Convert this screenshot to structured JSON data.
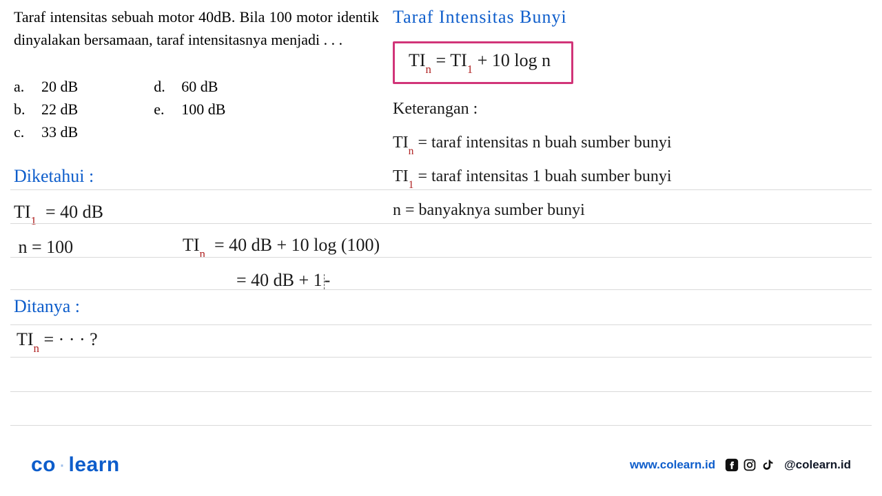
{
  "colors": {
    "blue": "#0d5dcb",
    "red_sub": "#b02424",
    "pink_border": "#d13478",
    "text": "#1a1a1a",
    "rule": "#d9d9d9"
  },
  "question": {
    "text": "Taraf intensitas sebuah motor 40dB. Bila 100 motor identik dinyalakan bersamaan, taraf intensitasnya menjadi . . .",
    "options_left": [
      {
        "letter": "a.",
        "text": "20 dB"
      },
      {
        "letter": "b.",
        "text": "22 dB"
      },
      {
        "letter": "c.",
        "text": "33 dB"
      }
    ],
    "options_right": [
      {
        "letter": "d.",
        "text": "60 dB"
      },
      {
        "letter": "e.",
        "text": "100 dB"
      }
    ]
  },
  "heading_right": "Taraf  Intensitas  Bunyi",
  "formula": {
    "lhs_main": "TI",
    "lhs_sub": "n",
    "rhs_main": "TI",
    "rhs_sub": "1",
    "tail": " + 10 log n"
  },
  "keterangan": {
    "title": "Keterangan :",
    "lines": [
      {
        "sym_main": "TI",
        "sym_sub": "n",
        "eq": "= taraf intensitas n buah sumber bunyi"
      },
      {
        "sym_main": "TI",
        "sym_sub": "1",
        "eq": "= taraf intensitas 1 buah sumber bunyi"
      },
      {
        "sym_main": "n",
        "sym_sub": "",
        "eq": "= banyaknya sumber bunyi"
      }
    ]
  },
  "diketahui": {
    "title": "Diketahui :",
    "lines": [
      {
        "sym_main": "TI",
        "sym_sub": "1",
        "eq": "= 40 dB"
      },
      {
        "sym_main": "n",
        "sym_sub": "",
        "eq": "=  100"
      }
    ]
  },
  "calc": {
    "line1": {
      "lhs_main": "TI",
      "lhs_sub": "n",
      "rhs": "=  40 dB  +  10  log (100)"
    },
    "line2": "= 40 dB  +  1"
  },
  "ditanya": {
    "title": "Ditanya :",
    "line": {
      "sym_main": "TI",
      "sym_sub": "n",
      "eq": "=  · · ·  ?"
    }
  },
  "rules_y": [
    275,
    324,
    373,
    420,
    471,
    518,
    568,
    617
  ],
  "footer": {
    "brand_a": "co",
    "brand_b": "learn",
    "url": "www.colearn.id",
    "handle": "@colearn.id"
  }
}
